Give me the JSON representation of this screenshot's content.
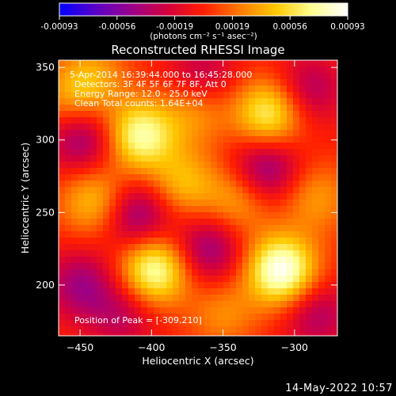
{
  "colorbar": {
    "ticks": [
      "-0.00093",
      "-0.00056",
      "-0.00019",
      "0.00019",
      "0.00056",
      "0.00093"
    ],
    "unit_label": "(photons cm⁻² s⁻¹ asec⁻²)",
    "range": [
      -0.00093,
      0.00093
    ],
    "colormap": [
      "#0000ff",
      "#5a00c8",
      "#9a008a",
      "#d4003c",
      "#ff1e00",
      "#ff7a00",
      "#ffc800",
      "#ffff90",
      "#ffffff"
    ]
  },
  "chart_data": {
    "type": "heatmap",
    "title": "Reconstructed RHESSI Image",
    "xlabel": "Heliocentric X (arcsec)",
    "ylabel": "Heliocentric Y (arcsec)",
    "xlim": [
      -465,
      -270
    ],
    "ylim": [
      165,
      355
    ],
    "xticks": [
      -450,
      -400,
      -350,
      -300
    ],
    "yticks": [
      200,
      250,
      300,
      350
    ],
    "header_lines": [
      "5-Apr-2014 16:39:44.000 to 16:45:28.000",
      "Detectors: 3F 4F 5F 6F 7F 8F, Att 0",
      "Energy Range: 12.0 - 25.0 keV",
      "Clean     Total counts: 1.64E+04"
    ],
    "peak_label": "Position of Peak = [-309,210]",
    "peak_position": [
      -309,
      210
    ],
    "sources": [
      {
        "x": -309,
        "y": 210,
        "intensity": 1.0
      },
      {
        "x": -398,
        "y": 210,
        "intensity": 0.85
      },
      {
        "x": -408,
        "y": 303,
        "intensity": 0.8
      },
      {
        "x": -318,
        "y": 318,
        "intensity": 0.72
      },
      {
        "x": -378,
        "y": 270,
        "intensity": 0.45
      },
      {
        "x": -440,
        "y": 258,
        "intensity": 0.5
      },
      {
        "x": -340,
        "y": 258,
        "intensity": 0.4
      },
      {
        "x": -455,
        "y": 330,
        "intensity": 0.35
      },
      {
        "x": -370,
        "y": 320,
        "intensity": 0.35
      },
      {
        "x": -285,
        "y": 260,
        "intensity": 0.35
      },
      {
        "x": -350,
        "y": 180,
        "intensity": 0.3
      },
      {
        "x": -440,
        "y": 345,
        "intensity": 0.3
      }
    ],
    "negative_regions": [
      {
        "x": -410,
        "y": 248,
        "intensity": -0.55
      },
      {
        "x": -448,
        "y": 300,
        "intensity": -0.5
      },
      {
        "x": -320,
        "y": 280,
        "intensity": -0.55
      },
      {
        "x": -360,
        "y": 225,
        "intensity": -0.5
      },
      {
        "x": -450,
        "y": 200,
        "intensity": -0.45
      },
      {
        "x": -285,
        "y": 180,
        "intensity": -0.4
      },
      {
        "x": -365,
        "y": 345,
        "intensity": -0.35
      },
      {
        "x": -290,
        "y": 335,
        "intensity": -0.4
      },
      {
        "x": -420,
        "y": 180,
        "intensity": -0.35
      }
    ]
  },
  "footer": {
    "date": "14-May-2022 10:57"
  }
}
